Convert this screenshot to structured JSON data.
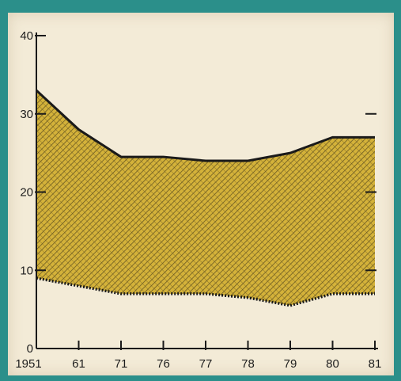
{
  "colors": {
    "frame": "#2b8f8a",
    "paper": "#f3ebd7",
    "fill": "#d4b23a",
    "hatch": "#6b5a22",
    "line": "#1a1a1a"
  },
  "chart_data": {
    "type": "area",
    "title": "",
    "xlabel": "",
    "ylabel": "",
    "categories": [
      "1951",
      "61",
      "71",
      "76",
      "77",
      "78",
      "79",
      "80",
      "81"
    ],
    "series": [
      {
        "values": [
          9,
          8,
          7,
          7,
          7,
          6.5,
          5.5,
          7,
          7
        ]
      },
      {
        "values": [
          33,
          28,
          24.5,
          24.5,
          24,
          24,
          25,
          27,
          27
        ]
      }
    ],
    "ylim": [
      0,
      40
    ],
    "yticks": [
      0,
      10,
      20,
      30,
      40
    ],
    "grid": false,
    "legend": "none"
  }
}
